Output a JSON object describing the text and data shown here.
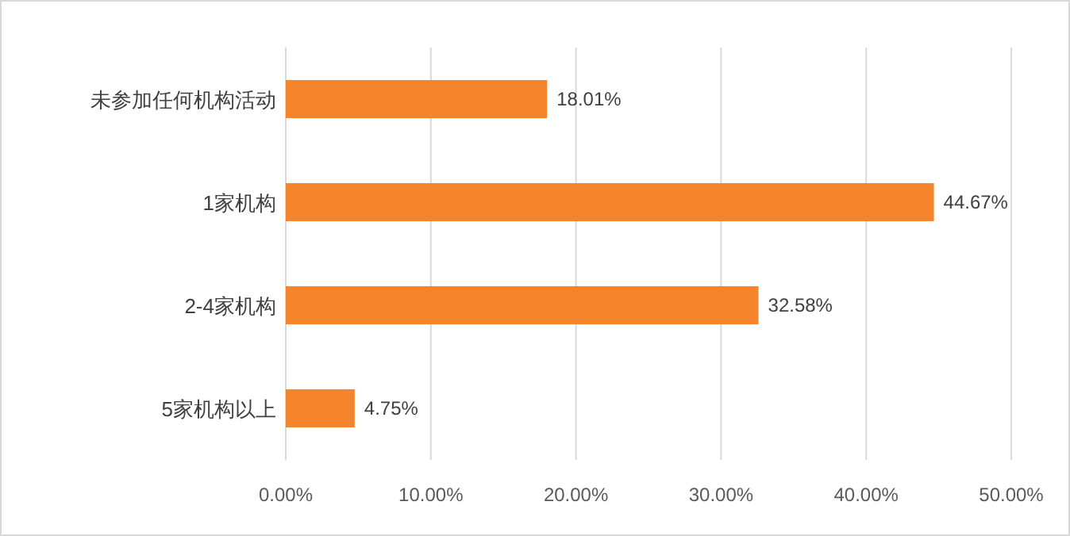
{
  "chart_data": {
    "type": "bar",
    "orientation": "horizontal",
    "categories": [
      "未参加任何机构活动",
      "1家机构",
      "2-4家机构",
      "5家机构以上"
    ],
    "values": [
      18.01,
      44.67,
      32.58,
      4.75
    ],
    "color": "#f5852c",
    "value_labels": [
      "18.01%",
      "44.67%",
      "32.58%",
      "4.75%"
    ],
    "xlim": [
      0,
      50
    ],
    "xticks": [
      {
        "value": 0,
        "label": "0.00%"
      },
      {
        "value": 10,
        "label": "10.00%"
      },
      {
        "value": 20,
        "label": "20.00%"
      },
      {
        "value": 30,
        "label": "30.00%"
      },
      {
        "value": 40,
        "label": "40.00%"
      },
      {
        "value": 50,
        "label": "50.00%"
      }
    ],
    "grid": "x"
  }
}
